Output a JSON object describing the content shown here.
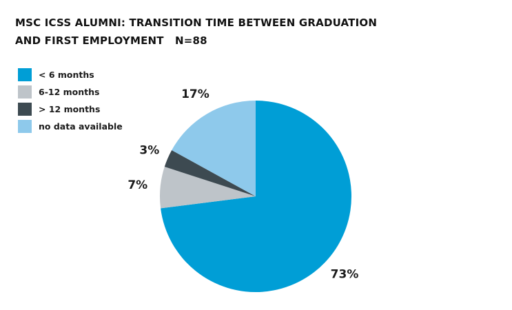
{
  "chart_data": {
    "type": "pie",
    "title": "MSC ICSS ALUMNI: TRANSITION TIME BETWEEN GRADUATION AND FIRST EMPLOYMENT   N=88",
    "title_lines": [
      "MSC ICSS ALUMNI: TRANSITION TIME BETWEEN GRADUATION",
      "AND FIRST EMPLOYMENT   N=88"
    ],
    "slices": [
      {
        "label": "< 6 months",
        "value": 73,
        "display": "73%",
        "color": "#009ed6"
      },
      {
        "label": "6-12 months",
        "value": 7,
        "display": "7%",
        "color": "#bec4c9"
      },
      {
        "label": "> 12 months",
        "value": 3,
        "display": "3%",
        "color": "#3d4a51"
      },
      {
        "label": "no data available",
        "value": 17,
        "display": "17%",
        "color": "#8ec9eb"
      }
    ],
    "start": "12 o'clock",
    "direction": "clockwise",
    "legend_position": "top-left"
  }
}
